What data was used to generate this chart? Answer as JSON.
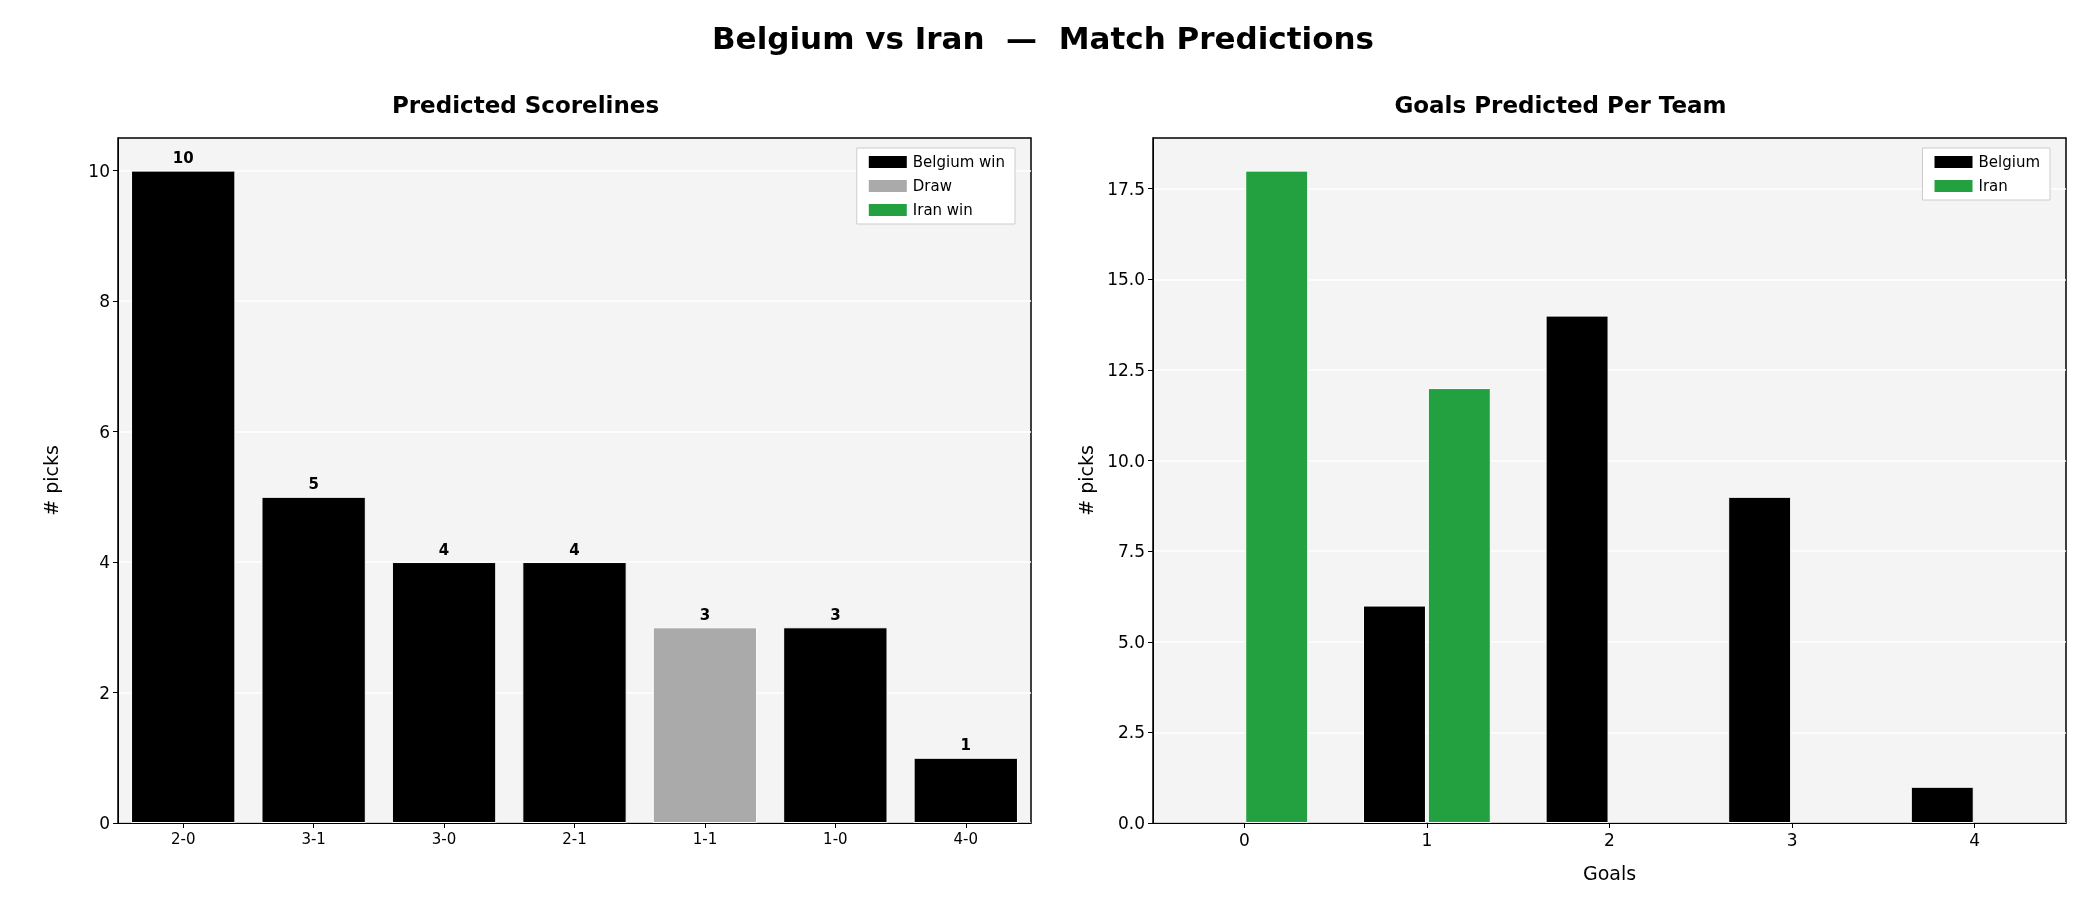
{
  "chart_data": [
    {
      "type": "bar",
      "title": "Belgium vs Iran  —  Match Predictions",
      "subtitle": "Predicted Scorelines",
      "ylabel": "# picks",
      "categories": [
        "2-0",
        "3-1",
        "3-0",
        "2-1",
        "1-1",
        "1-0",
        "4-0"
      ],
      "series": [
        {
          "name": "Belgium win",
          "color": "#000000",
          "values": [
            10,
            5,
            4,
            4,
            null,
            3,
            1
          ]
        },
        {
          "name": "Draw",
          "color": "#aaaaaa",
          "values": [
            null,
            null,
            null,
            null,
            3,
            null,
            null
          ]
        },
        {
          "name": "Iran win",
          "color": "#23a03f",
          "values": [
            null,
            null,
            null,
            null,
            null,
            null,
            null
          ]
        }
      ],
      "stacked": true,
      "data_labels": true,
      "ylim": [
        0,
        10.5
      ],
      "yticks": [
        0,
        2,
        4,
        6,
        8,
        10
      ],
      "grid": "y",
      "legend": "top right"
    },
    {
      "type": "bar",
      "subtitle": "Goals Predicted Per Team",
      "xlabel": "Goals",
      "ylabel": "# picks",
      "categories": [
        "0",
        "1",
        "2",
        "3",
        "4"
      ],
      "series": [
        {
          "name": "Belgium",
          "color": "#000000",
          "values": [
            0,
            6,
            14,
            9,
            1
          ]
        },
        {
          "name": "Iran",
          "color": "#23a03f",
          "values": [
            18,
            12,
            0,
            0,
            0
          ]
        }
      ],
      "ylim": [
        0,
        18.9
      ],
      "yticks": [
        {
          "value": 0,
          "label": "0.0"
        },
        2.5,
        {
          "value": 5,
          "label": "5.0"
        },
        7.5,
        {
          "value": 10,
          "label": "10.0"
        },
        12.5,
        {
          "value": 15,
          "label": "15.0"
        },
        17.5
      ],
      "grid": "y",
      "legend": "top right"
    }
  ]
}
